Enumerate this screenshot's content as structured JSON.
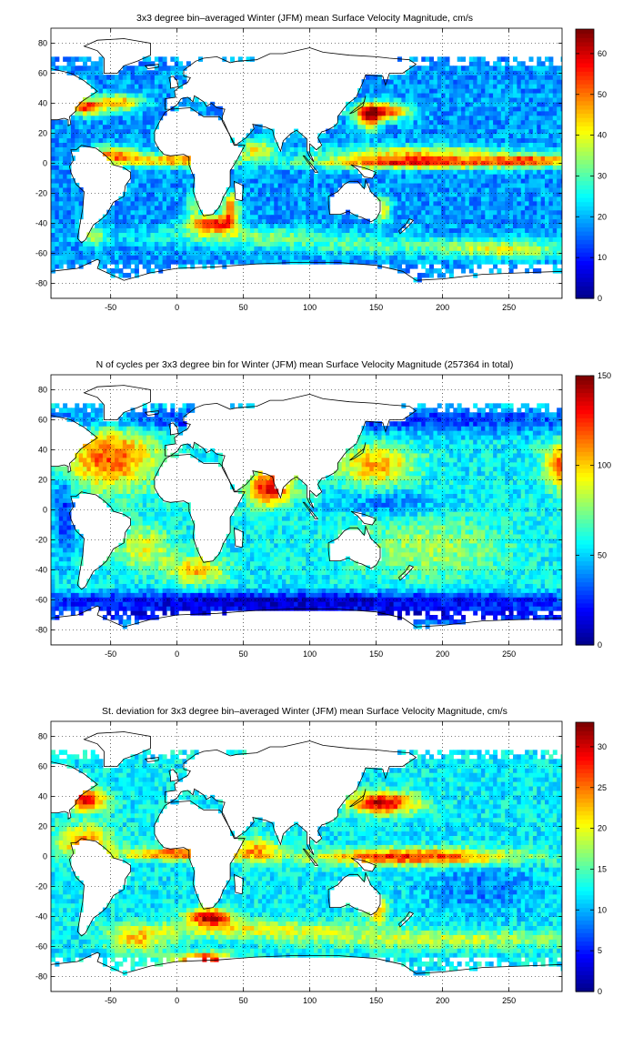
{
  "figure": {
    "panels": [
      {
        "title": "3x3 degree bin–averaged Winter (JFM) mean Surface Velocity Magnitude, cm/s",
        "x_ticks": [
          "-50",
          "0",
          "50",
          "100",
          "150",
          "200",
          "250"
        ],
        "y_ticks": [
          "80",
          "60",
          "40",
          "20",
          "0",
          "-20",
          "-40",
          "-60",
          "-80"
        ],
        "colorbar_ticks": [
          "0",
          "10",
          "20",
          "30",
          "40",
          "50",
          "60"
        ]
      },
      {
        "title": "N of cycles per 3x3 degree bin for Winter (JFM) mean Surface Velocity Magnitude (257364 in total)",
        "x_ticks": [
          "-50",
          "0",
          "50",
          "100",
          "150",
          "200",
          "250"
        ],
        "y_ticks": [
          "80",
          "60",
          "40",
          "20",
          "0",
          "-20",
          "-40",
          "-60",
          "-80"
        ],
        "colorbar_ticks": [
          "0",
          "50",
          "100",
          "150"
        ]
      },
      {
        "title": "St. deviation for 3x3 degree bin–averaged Winter (JFM) mean Surface Velocity Magnitude, cm/s",
        "x_ticks": [
          "-50",
          "0",
          "50",
          "100",
          "150",
          "200",
          "250"
        ],
        "y_ticks": [
          "80",
          "60",
          "40",
          "20",
          "0",
          "-20",
          "-40",
          "-60",
          "-80"
        ],
        "colorbar_ticks": [
          "0",
          "5",
          "10",
          "15",
          "20",
          "25",
          "30"
        ]
      }
    ],
    "colormap": "jet",
    "colormap_colors": [
      "#00008f",
      "#0000ff",
      "#0080ff",
      "#00ffff",
      "#80ff80",
      "#ffff00",
      "#ff8000",
      "#ff0000",
      "#800000"
    ],
    "land_color": "#ffffff",
    "coast_color": "#000000"
  },
  "chart_data": [
    {
      "type": "heatmap",
      "title": "3x3 degree bin–averaged Winter (JFM) mean Surface Velocity Magnitude, cm/s",
      "variable": "Winter (JFM) mean Surface Velocity Magnitude",
      "unit": "cm/s",
      "bin_size_deg": 3,
      "xlim": [
        -95,
        290
      ],
      "ylim": [
        -90,
        90
      ],
      "x_ticks": [
        -50,
        0,
        50,
        100,
        150,
        200,
        250
      ],
      "y_ticks": [
        -80,
        -60,
        -40,
        -20,
        0,
        20,
        40,
        60,
        80
      ],
      "colorbar_range": [
        0,
        66
      ],
      "colorbar_ticks": [
        0,
        10,
        20,
        30,
        40,
        50,
        60
      ],
      "grid": true,
      "background_value": 18,
      "features": [
        {
          "lon": 180,
          "lat": 1,
          "sigma": [
            55,
            3
          ],
          "value": 58
        },
        {
          "lon": 0,
          "lat": 2,
          "sigma": [
            30,
            3
          ],
          "value": 48
        },
        {
          "lon": 270,
          "lat": 2,
          "sigma": [
            25,
            3
          ],
          "value": 45
        },
        {
          "lon": 182,
          "lat": 8,
          "sigma": [
            50,
            3
          ],
          "value": 40
        },
        {
          "lon": -48,
          "lat": 6,
          "sigma": [
            14,
            4
          ],
          "value": 48
        },
        {
          "lon": -70,
          "lat": 38,
          "sigma": [
            10,
            4
          ],
          "value": 55
        },
        {
          "lon": -42,
          "lat": 41,
          "sigma": [
            12,
            4
          ],
          "value": 45
        },
        {
          "lon": 155,
          "lat": 35,
          "sigma": [
            15,
            4
          ],
          "value": 55
        },
        {
          "lon": 145,
          "lat": 30,
          "sigma": [
            6,
            6
          ],
          "value": 50
        },
        {
          "lon": 25,
          "lat": -40,
          "sigma": [
            12,
            4
          ],
          "value": 58
        },
        {
          "lon": 40,
          "lat": -30,
          "sigma": [
            5,
            8
          ],
          "value": 48
        },
        {
          "lon": 12,
          "lat": -28,
          "sigma": [
            5,
            6
          ],
          "value": 32
        },
        {
          "lon": 50,
          "lat": -48,
          "sigma": [
            60,
            4
          ],
          "value": 32
        },
        {
          "lon": 175,
          "lat": -55,
          "sigma": [
            80,
            4
          ],
          "value": 30
        },
        {
          "lon": 155,
          "lat": -30,
          "sigma": [
            4,
            6
          ],
          "value": 42
        },
        {
          "lon": 60,
          "lat": 10,
          "sigma": [
            10,
            5
          ],
          "value": 40
        },
        {
          "lon": 250,
          "lat": -58,
          "sigma": [
            30,
            4
          ],
          "value": 34
        },
        {
          "lon": -62,
          "lat": -48,
          "sigma": [
            6,
            5
          ],
          "value": 36
        }
      ]
    },
    {
      "type": "heatmap",
      "title": "N of cycles per 3x3 degree bin for Winter (JFM) mean Surface Velocity Magnitude (257364 in total)",
      "variable": "Number of cycles per 3x3 degree bin",
      "total": 257364,
      "bin_size_deg": 3,
      "xlim": [
        -95,
        290
      ],
      "ylim": [
        -90,
        90
      ],
      "x_ticks": [
        -50,
        0,
        50,
        100,
        150,
        200,
        250
      ],
      "y_ticks": [
        -80,
        -60,
        -40,
        -20,
        0,
        20,
        40,
        60,
        80
      ],
      "colorbar_range": [
        0,
        150
      ],
      "colorbar_ticks": [
        0,
        50,
        100,
        150
      ],
      "grid": true,
      "background_value": 55,
      "features": [
        {
          "lon": -50,
          "lat": 35,
          "sigma": [
            25,
            15
          ],
          "value": 120
        },
        {
          "lon": 70,
          "lat": 15,
          "sigma": [
            12,
            8
          ],
          "value": 135
        },
        {
          "lon": 150,
          "lat": 30,
          "sigma": [
            20,
            10
          ],
          "value": 105
        },
        {
          "lon": 290,
          "lat": 30,
          "sigma": [
            10,
            10
          ],
          "value": 120
        },
        {
          "lon": 15,
          "lat": -40,
          "sigma": [
            15,
            6
          ],
          "value": 105
        },
        {
          "lon": -25,
          "lat": -25,
          "sigma": [
            15,
            10
          ],
          "value": 90
        },
        {
          "lon": 190,
          "lat": -25,
          "sigma": [
            40,
            15
          ],
          "value": 80
        },
        {
          "lon": 100,
          "lat": -60,
          "sigma": [
            200,
            4
          ],
          "value": 12
        },
        {
          "lon": 100,
          "lat": -70,
          "sigma": [
            200,
            4
          ],
          "value": 10
        },
        {
          "lon": 100,
          "lat": 60,
          "sigma": [
            200,
            6
          ],
          "value": 22
        },
        {
          "lon": -85,
          "lat": 0,
          "sigma": [
            6,
            20
          ],
          "value": 25
        },
        {
          "lon": 160,
          "lat": 5,
          "sigma": [
            30,
            6
          ],
          "value": 35
        }
      ]
    },
    {
      "type": "heatmap",
      "title": "St. deviation for 3x3 degree bin–averaged Winter (JFM) mean Surface Velocity Magnitude, cm/s",
      "variable": "Standard deviation of Winter (JFM) mean Surface Velocity Magnitude",
      "unit": "cm/s",
      "bin_size_deg": 3,
      "xlim": [
        -95,
        290
      ],
      "ylim": [
        -90,
        90
      ],
      "x_ticks": [
        -50,
        0,
        50,
        100,
        150,
        200,
        250
      ],
      "y_ticks": [
        -80,
        -60,
        -40,
        -20,
        0,
        20,
        40,
        60,
        80
      ],
      "colorbar_range": [
        0,
        33
      ],
      "colorbar_ticks": [
        0,
        5,
        10,
        15,
        20,
        25,
        30
      ],
      "grid": true,
      "background_value": 12,
      "features": [
        {
          "lon": 180,
          "lat": 0,
          "sigma": [
            55,
            4
          ],
          "value": 28
        },
        {
          "lon": 0,
          "lat": 2,
          "sigma": [
            30,
            3
          ],
          "value": 26
        },
        {
          "lon": -70,
          "lat": 38,
          "sigma": [
            12,
            5
          ],
          "value": 30
        },
        {
          "lon": 155,
          "lat": 36,
          "sigma": [
            18,
            5
          ],
          "value": 31
        },
        {
          "lon": 25,
          "lat": -40,
          "sigma": [
            12,
            4
          ],
          "value": 31
        },
        {
          "lon": -70,
          "lat": 10,
          "sigma": [
            15,
            8
          ],
          "value": 24
        },
        {
          "lon": 60,
          "lat": 5,
          "sigma": [
            12,
            6
          ],
          "value": 22
        },
        {
          "lon": 150,
          "lat": -35,
          "sigma": [
            6,
            6
          ],
          "value": 25
        },
        {
          "lon": 60,
          "lat": -48,
          "sigma": [
            60,
            4
          ],
          "value": 20
        },
        {
          "lon": 200,
          "lat": -55,
          "sigma": [
            80,
            4
          ],
          "value": 19
        },
        {
          "lon": 20,
          "lat": -68,
          "sigma": [
            15,
            3
          ],
          "value": 30
        },
        {
          "lon": -30,
          "lat": -55,
          "sigma": [
            15,
            6
          ],
          "value": 22
        },
        {
          "lon": 230,
          "lat": -20,
          "sigma": [
            30,
            12
          ],
          "value": 8
        }
      ]
    }
  ]
}
